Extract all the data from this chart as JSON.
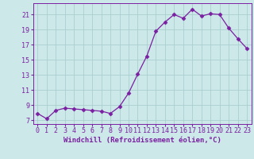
{
  "x": [
    0,
    1,
    2,
    3,
    4,
    5,
    6,
    7,
    8,
    9,
    10,
    11,
    12,
    13,
    14,
    15,
    16,
    17,
    18,
    19,
    20,
    21,
    22,
    23
  ],
  "y": [
    7.9,
    7.2,
    8.3,
    8.6,
    8.5,
    8.4,
    8.3,
    8.2,
    7.9,
    8.8,
    10.6,
    13.1,
    15.5,
    18.8,
    20.0,
    21.0,
    20.5,
    21.7,
    20.8,
    21.1,
    21.0,
    19.2,
    17.8,
    16.5
  ],
  "line_color": "#7b1fa2",
  "marker": "D",
  "marker_size": 2.5,
  "bg_color": "#cce8e8",
  "grid_color": "#aacece",
  "xlabel": "Windchill (Refroidissement éolien,°C)",
  "xlabel_color": "#7b1fa2",
  "xlabel_fontsize": 6.5,
  "tick_color": "#7b1fa2",
  "tick_fontsize": 6.0,
  "ylim": [
    6.5,
    22.5
  ],
  "xlim": [
    -0.5,
    23.5
  ],
  "yticks": [
    7,
    9,
    11,
    13,
    15,
    17,
    19,
    21
  ],
  "xticks": [
    0,
    1,
    2,
    3,
    4,
    5,
    6,
    7,
    8,
    9,
    10,
    11,
    12,
    13,
    14,
    15,
    16,
    17,
    18,
    19,
    20,
    21,
    22,
    23
  ]
}
